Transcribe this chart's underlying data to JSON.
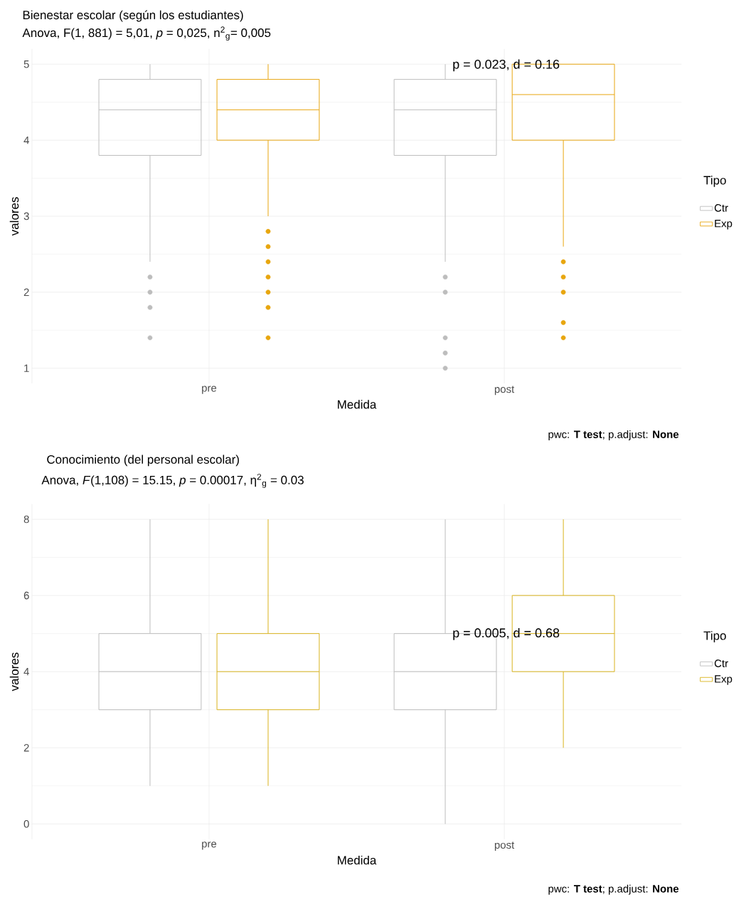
{
  "chart_data": [
    {
      "type": "box",
      "title": "Bienestar escolar (según los estudiantes)",
      "subtitle": "Anova, F(1, 881) = 5,01, *p* = 0,025, n$^{2}$$_{g}$= 0,005",
      "xlabel": "Medida",
      "ylabel": "valores",
      "legend_title": "Tipo",
      "categories": [
        "pre",
        "post"
      ],
      "series": [
        {
          "name": "Ctr",
          "color": "#bdbdbd",
          "boxes": [
            {
              "low": 2.4,
              "q1": 3.8,
              "median": 4.4,
              "q3": 4.8,
              "high": 5,
              "outliers": [
                2.2,
                2.0,
                1.8,
                1.4
              ]
            },
            {
              "low": 2.4,
              "q1": 3.8,
              "median": 4.4,
              "q3": 4.8,
              "high": 5,
              "outliers": [
                2.2,
                2.0,
                1.4,
                1.2,
                1.0
              ]
            }
          ]
        },
        {
          "name": "Exp",
          "color": "#e8a60f",
          "boxes": [
            {
              "low": 3.0,
              "q1": 4.0,
              "median": 4.4,
              "q3": 4.8,
              "high": 5,
              "outliers": [
                2.8,
                2.6,
                2.4,
                2.2,
                2.0,
                1.8,
                1.4
              ]
            },
            {
              "low": 2.6,
              "q1": 4.0,
              "median": 4.6,
              "q3": 5.0,
              "high": 5.0,
              "outliers": [
                2.4,
                2.2,
                2.0,
                1.6,
                1.4
              ]
            }
          ]
        }
      ],
      "ylim": [
        0.8,
        5.2
      ],
      "yticks": [
        1,
        2,
        3,
        4,
        5
      ],
      "grid": true,
      "legend": "right",
      "annotations": [
        "p = 0.023, d = 0.16",
        "pwc: **T test**; p.adjust: **None**"
      ]
    },
    {
      "type": "box",
      "title": "Conocimiento (del personal escolar)",
      "subtitle": "Anova, *F*(1,108) = 15.15, *p* = 0.00017, η$^{2}$$_{g}$ = 0.03",
      "xlabel": "Medida",
      "ylabel": "valores",
      "legend_title": "Tipo",
      "categories": [
        "pre",
        "post"
      ],
      "series": [
        {
          "name": "Ctr",
          "color": "#bdbdbd",
          "boxes": [
            {
              "low": 1,
              "q1": 3,
              "median": 4,
              "q3": 5,
              "high": 8
            },
            {
              "low": 0,
              "q1": 3,
              "median": 4,
              "q3": 5,
              "high": 8
            }
          ]
        },
        {
          "name": "Exp",
          "color": "#d9b31c",
          "boxes": [
            {
              "low": 1,
              "q1": 3,
              "median": 4,
              "q3": 5,
              "high": 8
            },
            {
              "low": 2,
              "q1": 4,
              "median": 5,
              "q3": 6,
              "high": 8
            }
          ]
        }
      ],
      "ylim": [
        -0.4,
        8.4
      ],
      "yticks": [
        0,
        2,
        4,
        6,
        8
      ],
      "grid": true,
      "legend": "right",
      "annotations": [
        "p = 0.005, d = 0.68",
        "pwc: **T test**; p.adjust: **None**"
      ]
    }
  ]
}
